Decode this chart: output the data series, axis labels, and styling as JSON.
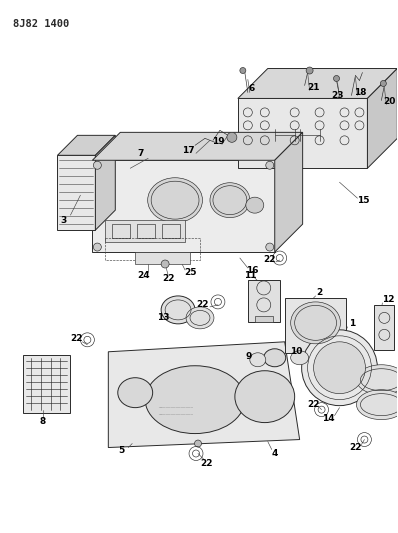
{
  "title": "8J82 1400",
  "bg": "#ffffff",
  "lc": "#2a2a2a",
  "figsize": [
    3.98,
    5.33
  ],
  "dpi": 100,
  "pw": 398,
  "ph": 533
}
